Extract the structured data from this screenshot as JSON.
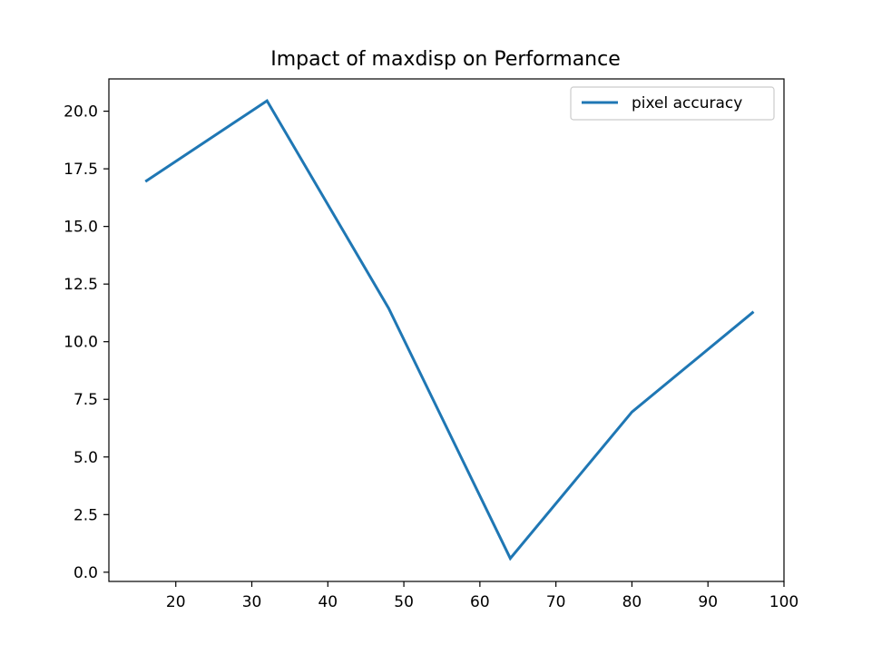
{
  "chart_data": {
    "type": "line",
    "title": "Impact of maxdisp on Performance",
    "xlabel": "",
    "ylabel": "",
    "xlim": [
      11.2,
      100
    ],
    "ylim": [
      -0.4,
      21.4
    ],
    "xticks": [
      20,
      30,
      40,
      50,
      60,
      70,
      80,
      90,
      100
    ],
    "yticks": [
      0.0,
      2.5,
      5.0,
      7.5,
      10.0,
      12.5,
      15.0,
      17.5,
      20.0
    ],
    "ytick_labels": [
      "0.0",
      "2.5",
      "5.0",
      "7.5",
      "10.0",
      "12.5",
      "15.0",
      "17.5",
      "20.0"
    ],
    "grid": false,
    "legend_position": "top-right",
    "series": [
      {
        "name": "pixel accuracy",
        "color": "#1f77b4",
        "x": [
          16,
          32,
          48,
          64,
          80,
          96
        ],
        "y": [
          16.95,
          20.45,
          11.45,
          0.6,
          6.95,
          11.3
        ]
      }
    ]
  }
}
